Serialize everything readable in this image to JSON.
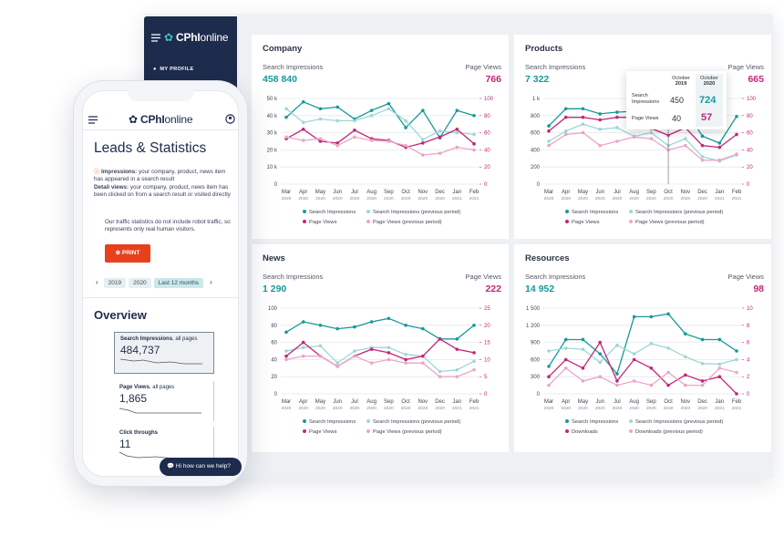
{
  "sidebar": {
    "brand": "CPhI",
    "suffix": "online",
    "menu": [
      "MY PROFILE"
    ]
  },
  "phone": {
    "brand": "CPhI",
    "suffix": "online",
    "title": "Leads & Statistics",
    "info": [
      {
        "term": "Impressions:",
        "text": " your company, product, news item has appeared in a search result"
      },
      {
        "term": "Detail views:",
        "text": " your company, product, news item has been clicked on from a search result or visited directly"
      }
    ],
    "note": "Our traffic statistics do not include robot traffic, so represents only real human visitors.",
    "print": "PRINT",
    "tabs": [
      "2019",
      "2020",
      "Last 12 months"
    ],
    "overview": "Overview",
    "cards": [
      {
        "label": "Search Impressions",
        "suffix": ", all pages",
        "value": "484,737"
      },
      {
        "label": "Page Views",
        "suffix": ", all pages",
        "value": "1,865"
      },
      {
        "label": "Click throughs",
        "suffix": "",
        "value": "11"
      }
    ],
    "chat": "Hi how can we help?"
  },
  "chart_data": [
    {
      "type": "line",
      "title": "Company",
      "left_label": "Search Impressions",
      "right_label": "Page Views",
      "left_total": "458 840",
      "right_total": "766",
      "categories": [
        "Mar",
        "Apr",
        "May",
        "Jun",
        "Jul",
        "Aug",
        "Sep",
        "Oct",
        "Nov",
        "Dec",
        "Jan",
        "Feb"
      ],
      "category_years": [
        "2020",
        "2020",
        "2020",
        "2020",
        "2020",
        "2020",
        "2020",
        "2020",
        "2020",
        "2020",
        "2021",
        "2021"
      ],
      "ylim": [
        0,
        50000
      ],
      "yticks": [
        0,
        {
          "value": 10000,
          "label": "10 k"
        },
        {
          "value": 20000,
          "label": "20 k"
        },
        {
          "value": 30000,
          "label": "30 k"
        },
        {
          "value": 40000,
          "label": "40 k"
        },
        {
          "value": 50000,
          "label": "50 k"
        }
      ],
      "y2lim": [
        0,
        100
      ],
      "y2ticks": [
        0,
        20,
        40,
        60,
        80,
        100
      ],
      "grid": true,
      "series": [
        {
          "name": "Search Impressions",
          "color": "#17999a",
          "values": [
            39000,
            48000,
            44000,
            45000,
            38000,
            43000,
            47000,
            33000,
            43000,
            27000,
            43000,
            40000
          ]
        },
        {
          "name": "Search Impressions (previous period)",
          "color": "#9fd6d6",
          "values": [
            44000,
            36000,
            38000,
            37000,
            37000,
            40000,
            44000,
            37000,
            26000,
            31000,
            30000,
            29000
          ]
        },
        {
          "name": "Page Views",
          "color": "#c2267a",
          "axis": "y2",
          "values": [
            53,
            64,
            50,
            48,
            63,
            53,
            51,
            43,
            48,
            55,
            64,
            47
          ]
        },
        {
          "name": "Page Views (previous period)",
          "color": "#eaa6c9",
          "axis": "y2",
          "values": [
            55,
            51,
            53,
            45,
            55,
            51,
            50,
            45,
            34,
            36,
            43,
            40
          ]
        }
      ]
    },
    {
      "type": "line",
      "title": "Products",
      "left_label": "Search Impressions",
      "right_label": "Page Views",
      "left_total": "7 322",
      "right_total": "665",
      "categories": [
        "Mar",
        "Apr",
        "May",
        "Jun",
        "Jul",
        "Aug",
        "Sep",
        "Oct",
        "Nov",
        "Dec",
        "Jan",
        "Feb"
      ],
      "category_years": [
        "2020",
        "2020",
        "2020",
        "2020",
        "2020",
        "2020",
        "2020",
        "2020",
        "2020",
        "2020",
        "2021",
        "2021"
      ],
      "ylim": [
        0,
        1000
      ],
      "yticks": [
        0,
        200,
        400,
        600,
        800,
        {
          "value": 1000,
          "label": "1 k"
        }
      ],
      "y2lim": [
        0,
        100
      ],
      "y2ticks": [
        0,
        20,
        40,
        60,
        80,
        100
      ],
      "grid": true,
      "series": [
        {
          "name": "Search Impressions",
          "color": "#17999a",
          "values": [
            680,
            880,
            880,
            820,
            840,
            850,
            740,
            724,
            870,
            560,
            480,
            790
          ]
        },
        {
          "name": "Search Impressions (previous period)",
          "color": "#9fd6d6",
          "values": [
            500,
            620,
            700,
            640,
            660,
            560,
            600,
            450,
            530,
            320,
            270,
            340
          ]
        },
        {
          "name": "Page Views",
          "color": "#c2267a",
          "axis": "y2",
          "values": [
            62,
            78,
            78,
            75,
            78,
            78,
            65,
            57,
            66,
            45,
            43,
            58
          ]
        },
        {
          "name": "Page Views (previous period)",
          "color": "#eaa6c9",
          "axis": "y2",
          "values": [
            45,
            58,
            60,
            45,
            50,
            55,
            53,
            40,
            45,
            28,
            28,
            35
          ]
        }
      ],
      "tooltip": {
        "columns": [
          {
            "month": "October",
            "year": "2019"
          },
          {
            "month": "October",
            "year": "2020"
          }
        ],
        "rows": [
          {
            "label": "Search Impressions",
            "values": [
              450,
              724
            ]
          },
          {
            "label": "Page Views",
            "values": [
              40,
              57
            ]
          }
        ]
      }
    },
    {
      "type": "line",
      "title": "News",
      "left_label": "Search Impressions",
      "right_label": "Page Views",
      "left_total": "1 290",
      "right_total": "222",
      "categories": [
        "Mar",
        "Apr",
        "May",
        "Jun",
        "Jul",
        "Aug",
        "Sep",
        "Oct",
        "Nov",
        "Dec",
        "Jan",
        "Feb"
      ],
      "category_years": [
        "2020",
        "2020",
        "2020",
        "2020",
        "2020",
        "2020",
        "2020",
        "2020",
        "2020",
        "2020",
        "2021",
        "2021"
      ],
      "ylim": [
        0,
        100
      ],
      "yticks": [
        0,
        20,
        40,
        60,
        80,
        100
      ],
      "y2lim": [
        0,
        25
      ],
      "y2ticks": [
        0,
        5,
        10,
        15,
        20,
        25
      ],
      "grid": true,
      "series": [
        {
          "name": "Search Impressions",
          "color": "#17999a",
          "values": [
            72,
            84,
            80,
            76,
            78,
            84,
            88,
            80,
            76,
            64,
            64,
            80
          ]
        },
        {
          "name": "Search Impressions (previous period)",
          "color": "#9fd6d6",
          "values": [
            50,
            54,
            56,
            36,
            50,
            54,
            54,
            46,
            44,
            26,
            28,
            38
          ]
        },
        {
          "name": "Page Views",
          "color": "#c2267a",
          "axis": "y2",
          "values": [
            11,
            15,
            11,
            8,
            11,
            13,
            12,
            10,
            11,
            16,
            13,
            12
          ]
        },
        {
          "name": "Page Views (previous period)",
          "color": "#eaa6c9",
          "axis": "y2",
          "values": [
            10,
            11,
            11,
            8,
            11,
            9,
            10,
            9,
            9,
            5,
            5,
            7
          ]
        }
      ]
    },
    {
      "type": "line",
      "title": "Resources",
      "left_label": "Search Impressions",
      "right_label": "Page Views",
      "left_total": "14 952",
      "right_total": "98",
      "categories": [
        "Mar",
        "Apr",
        "May",
        "Jun",
        "Jul",
        "Aug",
        "Sep",
        "Oct",
        "Nov",
        "Dec",
        "Jan",
        "Feb"
      ],
      "category_years": [
        "2020",
        "2020",
        "2020",
        "2020",
        "2020",
        "2020",
        "2020",
        "2020",
        "2020",
        "2020",
        "2021",
        "2021"
      ],
      "ylim": [
        0,
        1500
      ],
      "yticks": [
        0,
        300,
        600,
        900,
        {
          "value": 1200,
          "label": "1 200"
        },
        {
          "value": 1500,
          "label": "1 500"
        }
      ],
      "y2lim": [
        0,
        10
      ],
      "y2ticks": [
        0,
        2,
        4,
        6,
        8,
        10
      ],
      "grid": true,
      "series": [
        {
          "name": "Search Impressions",
          "color": "#17999a",
          "values": [
            480,
            950,
            950,
            700,
            350,
            1350,
            1350,
            1400,
            1050,
            950,
            950,
            750
          ]
        },
        {
          "name": "Search Impressions (previous period)",
          "color": "#9fd6d6",
          "values": [
            750,
            800,
            780,
            550,
            850,
            700,
            880,
            800,
            650,
            530,
            520,
            600
          ]
        },
        {
          "name": "Downloads",
          "color": "#c2267a",
          "axis": "y2",
          "values": [
            2,
            4,
            3,
            6,
            1.5,
            4,
            3,
            1,
            2.2,
            1.5,
            2,
            0
          ]
        },
        {
          "name": "Downloads (previous period)",
          "color": "#eaa6c9",
          "axis": "y2",
          "values": [
            1,
            3,
            1.5,
            2,
            1,
            1.5,
            1,
            2.5,
            1,
            1,
            3,
            2.5
          ]
        }
      ]
    }
  ]
}
